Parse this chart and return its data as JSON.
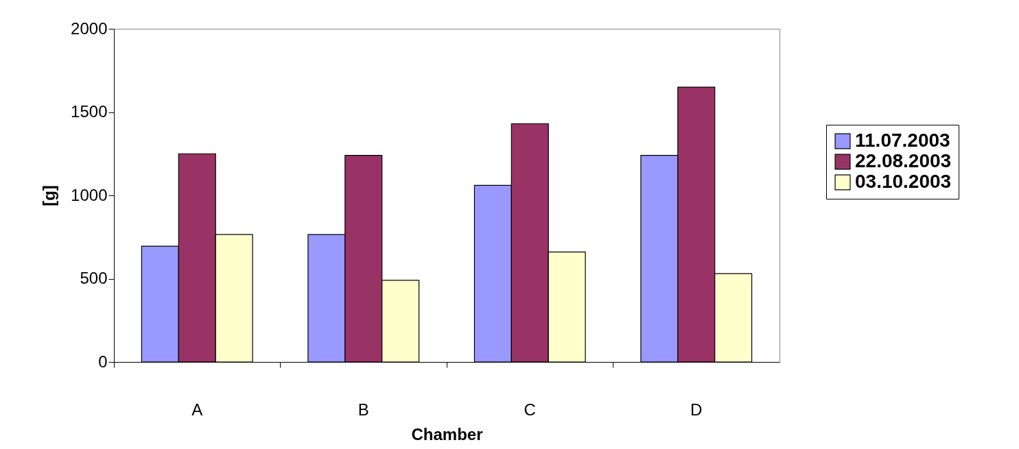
{
  "chart_data": {
    "type": "bar",
    "xlabel": "Chamber",
    "ylabel": "[g]",
    "categories": [
      "A",
      "B",
      "C",
      "D"
    ],
    "series": [
      {
        "name": "11.07.2003",
        "color": "#9999ff",
        "values": [
          695,
          765,
          1060,
          1240
        ]
      },
      {
        "name": "22.08.2003",
        "color": "#993366",
        "values": [
          1250,
          1240,
          1430,
          1650
        ]
      },
      {
        "name": "03.10.2003",
        "color": "#ffffcc",
        "values": [
          765,
          490,
          660,
          530
        ]
      }
    ],
    "ylim": [
      0,
      2000
    ],
    "yticks": [
      0,
      500,
      1000,
      1500,
      2000
    ],
    "grid": false,
    "legend": "right"
  }
}
